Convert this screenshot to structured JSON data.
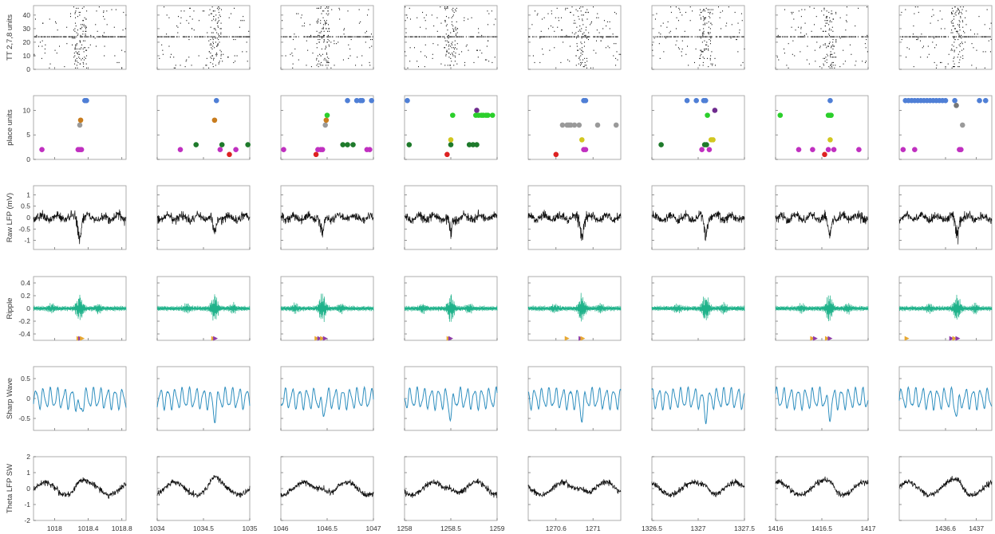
{
  "chart_data": {
    "type": "multi-panel",
    "grid": {
      "rows": 6,
      "cols": 8
    },
    "colors": {
      "raster": "#111111",
      "ripple": "#1fb28a",
      "sharp_wave": "#2f8fbf",
      "raw": "#111111",
      "theta": "#111111",
      "axis": "#999999",
      "marker_orange": "#e7a832",
      "marker_purple": "#8e3aa8"
    },
    "place_unit_colors": {
      "1": "#dd2222",
      "2": "#c030c0",
      "3": "#1e7a2b",
      "4": "#d2c71f",
      "7": "#9a9a9a",
      "8": "#c87c1e",
      "9": "#2bcf2b",
      "10": "#6f2c8e",
      "12": "#4f7fd6"
    },
    "rows": [
      {
        "key": "tt",
        "ylabel": "TT 2,7,8 units",
        "ylim": [
          0,
          47
        ],
        "yticks": [
          "0",
          "10",
          "20",
          "30",
          "40"
        ],
        "ytick_values": [
          0,
          10,
          20,
          30,
          40
        ]
      },
      {
        "key": "place",
        "ylabel": "place units",
        "ylim": [
          0,
          13
        ],
        "yticks": [
          "0",
          "5",
          "10"
        ],
        "ytick_values": [
          0,
          5,
          10
        ]
      },
      {
        "key": "raw",
        "ylabel": "Raw LFP (mV)",
        "ylim": [
          -1.4,
          1.4
        ],
        "yticks": [
          "-1",
          "-0.5",
          "0",
          "0.5",
          "1"
        ],
        "ytick_values": [
          -1,
          -0.5,
          0,
          0.5,
          1
        ]
      },
      {
        "key": "ripple",
        "ylabel": "Ripple",
        "ylim": [
          -0.5,
          0.5
        ],
        "yticks": [
          "-0.4",
          "-0.2",
          "0",
          "0.2",
          "0.4"
        ],
        "ytick_values": [
          -0.4,
          -0.2,
          0,
          0.2,
          0.4
        ]
      },
      {
        "key": "sw",
        "ylabel": "Sharp Wave",
        "ylim": [
          -0.8,
          0.8
        ],
        "yticks": [
          "-0.5",
          "0",
          "0.5"
        ],
        "ytick_values": [
          -0.5,
          0,
          0.5
        ]
      },
      {
        "key": "theta",
        "ylabel": "Theta LFP SW",
        "ylim": [
          -2,
          2
        ],
        "yticks": [
          "-2",
          "-1",
          "0",
          "1",
          "2"
        ],
        "ytick_values": [
          -2,
          -1,
          0,
          1,
          2
        ]
      }
    ],
    "columns": [
      {
        "xlim": [
          1017.75,
          1018.85
        ],
        "xticks": [
          "1018",
          "1018.4",
          "1018.8"
        ],
        "xtick_values": [
          1018,
          1018.4,
          1018.8
        ],
        "event": 1018.3,
        "markers": [
          1018.29,
          1018.31,
          1018.33
        ],
        "place": [
          [
            1017.85,
            2
          ],
          [
            1018.28,
            2
          ],
          [
            1018.3,
            2
          ],
          [
            1018.32,
            2
          ],
          [
            1018.3,
            7
          ],
          [
            1018.31,
            8
          ],
          [
            1018.36,
            12
          ],
          [
            1018.38,
            12
          ]
        ]
      },
      {
        "xlim": [
          1034,
          1035
        ],
        "xticks": [
          "1034",
          "1034.5",
          "1035"
        ],
        "xtick_values": [
          1034,
          1034.5,
          1035
        ],
        "event": 1034.62,
        "markers": [
          1034.61,
          1034.63
        ],
        "place": [
          [
            1034.25,
            2
          ],
          [
            1034.42,
            3
          ],
          [
            1034.62,
            8
          ],
          [
            1034.64,
            12
          ],
          [
            1034.68,
            2
          ],
          [
            1034.7,
            3
          ],
          [
            1034.78,
            1
          ],
          [
            1034.85,
            2
          ],
          [
            1034.98,
            3
          ]
        ]
      },
      {
        "xlim": [
          1046,
          1047
        ],
        "xticks": [
          "1046",
          "1046.5",
          "1047"
        ],
        "xtick_values": [
          1046,
          1046.5,
          1047
        ],
        "event": 1046.45,
        "markers": [
          1046.39,
          1046.42,
          1046.45,
          1046.48
        ],
        "place": [
          [
            1046.03,
            2
          ],
          [
            1046.38,
            1
          ],
          [
            1046.4,
            2
          ],
          [
            1046.43,
            2
          ],
          [
            1046.45,
            2
          ],
          [
            1046.48,
            7
          ],
          [
            1046.49,
            8
          ],
          [
            1046.5,
            9
          ],
          [
            1046.67,
            3
          ],
          [
            1046.72,
            3
          ],
          [
            1046.78,
            3
          ],
          [
            1046.72,
            12
          ],
          [
            1046.82,
            12
          ],
          [
            1046.86,
            12
          ],
          [
            1046.88,
            12
          ],
          [
            1046.93,
            2
          ],
          [
            1046.96,
            2
          ],
          [
            1046.98,
            12
          ]
        ]
      },
      {
        "xlim": [
          1258,
          1259
        ],
        "xticks": [
          "1258",
          "1258.5",
          "1259"
        ],
        "xtick_values": [
          1258,
          1258.5,
          1259
        ],
        "event": 1258.5,
        "markers": [
          1258.48,
          1258.5
        ],
        "place": [
          [
            1258.03,
            12
          ],
          [
            1258.05,
            3
          ],
          [
            1258.46,
            1
          ],
          [
            1258.5,
            3
          ],
          [
            1258.5,
            4
          ],
          [
            1258.52,
            9
          ],
          [
            1258.7,
            3
          ],
          [
            1258.74,
            3
          ],
          [
            1258.78,
            3
          ],
          [
            1258.78,
            10
          ],
          [
            1258.77,
            9
          ],
          [
            1258.8,
            9
          ],
          [
            1258.83,
            9
          ],
          [
            1258.85,
            9
          ],
          [
            1258.88,
            9
          ],
          [
            1258.9,
            9
          ],
          [
            1258.95,
            9
          ]
        ]
      },
      {
        "xlim": [
          1270.3,
          1271.3
        ],
        "xticks": [
          "1270.6",
          "1271"
        ],
        "xtick_values": [
          1270.6,
          1271
        ],
        "event": 1270.88,
        "markers": [
          1270.72,
          1270.87,
          1270.89
        ],
        "place": [
          [
            1270.6,
            1
          ],
          [
            1270.67,
            7
          ],
          [
            1270.72,
            7
          ],
          [
            1270.74,
            7
          ],
          [
            1270.76,
            7
          ],
          [
            1270.8,
            7
          ],
          [
            1270.85,
            7
          ],
          [
            1270.88,
            4
          ],
          [
            1270.9,
            2
          ],
          [
            1270.92,
            2
          ],
          [
            1270.9,
            12
          ],
          [
            1270.92,
            12
          ],
          [
            1271.05,
            7
          ],
          [
            1271.25,
            7
          ]
        ]
      },
      {
        "xlim": [
          1326.5,
          1327.5
        ],
        "xticks": [
          "1326.5",
          "1327",
          "1327.5"
        ],
        "xtick_values": [
          1326.5,
          1327,
          1327.5
        ],
        "event": 1327.08,
        "markers": [],
        "place": [
          [
            1326.6,
            3
          ],
          [
            1326.88,
            12
          ],
          [
            1326.98,
            12
          ],
          [
            1327.06,
            12
          ],
          [
            1327.08,
            12
          ],
          [
            1327.04,
            2
          ],
          [
            1327.07,
            3
          ],
          [
            1327.09,
            3
          ],
          [
            1327.1,
            9
          ],
          [
            1327.12,
            2
          ],
          [
            1327.14,
            4
          ],
          [
            1327.16,
            4
          ],
          [
            1327.18,
            10
          ]
        ]
      },
      {
        "xlim": [
          1416,
          1417
        ],
        "xticks": [
          "1416",
          "1416.5",
          "1417"
        ],
        "xtick_values": [
          1416,
          1416.5,
          1417
        ],
        "event": 1416.58,
        "markers": [
          1416.4,
          1416.43,
          1416.56,
          1416.59
        ],
        "place": [
          [
            1416.05,
            9
          ],
          [
            1416.25,
            2
          ],
          [
            1416.4,
            2
          ],
          [
            1416.53,
            1
          ],
          [
            1416.57,
            2
          ],
          [
            1416.59,
            4
          ],
          [
            1416.57,
            9
          ],
          [
            1416.59,
            9
          ],
          [
            1416.6,
            9
          ],
          [
            1416.59,
            12
          ],
          [
            1416.63,
            2
          ],
          [
            1416.9,
            2
          ]
        ]
      },
      {
        "xlim": [
          1436,
          1437.2
        ],
        "xticks": [
          "1436.6",
          "1437"
        ],
        "xtick_values": [
          1436.6,
          1437
        ],
        "event": 1436.75,
        "markers": [
          1436.1,
          1436.68,
          1436.72,
          1436.76
        ],
        "place": [
          [
            1436.05,
            2
          ],
          [
            1436.2,
            2
          ],
          [
            1436.08,
            12
          ],
          [
            1436.12,
            12
          ],
          [
            1436.16,
            12
          ],
          [
            1436.2,
            12
          ],
          [
            1436.24,
            12
          ],
          [
            1436.28,
            12
          ],
          [
            1436.32,
            12
          ],
          [
            1436.36,
            12
          ],
          [
            1436.4,
            12
          ],
          [
            1436.44,
            12
          ],
          [
            1436.48,
            12
          ],
          [
            1436.52,
            12
          ],
          [
            1436.56,
            12
          ],
          [
            1436.6,
            12
          ],
          [
            1436.72,
            12
          ],
          [
            1436.74,
            11
          ],
          [
            1436.78,
            2
          ],
          [
            1436.8,
            2
          ],
          [
            1436.82,
            7
          ],
          [
            1437.04,
            12
          ],
          [
            1437.12,
            12
          ]
        ]
      }
    ]
  }
}
